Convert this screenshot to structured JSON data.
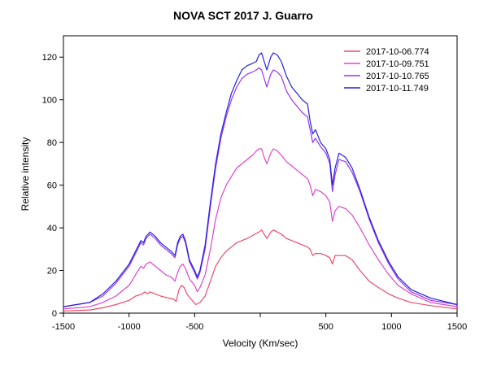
{
  "chart_data": {
    "type": "line",
    "title": "NOVA SCT 2017   J. Guarro",
    "xlabel": "Velocity (Km/sec)",
    "ylabel": "Relative intensity",
    "xlim": [
      -1500,
      1500
    ],
    "ylim": [
      0,
      130
    ],
    "xticks": [
      -1500,
      -1000,
      -500,
      0,
      500,
      1000,
      1500
    ],
    "xtick_labels": [
      "-1500",
      "-1000",
      "-500",
      "",
      "500",
      "1000",
      "1500"
    ],
    "yticks": [
      0,
      20,
      40,
      60,
      80,
      100,
      120
    ],
    "legend_position": "top-right",
    "grid": false,
    "series": [
      {
        "name": "2017-10-06.774",
        "color": "#ee4a6c",
        "points": [
          [
            -1500,
            1
          ],
          [
            -1300,
            1.5
          ],
          [
            -1200,
            2.5
          ],
          [
            -1100,
            4
          ],
          [
            -1000,
            6
          ],
          [
            -950,
            8
          ],
          [
            -900,
            9
          ],
          [
            -880,
            10
          ],
          [
            -860,
            9
          ],
          [
            -840,
            10
          ],
          [
            -800,
            9
          ],
          [
            -760,
            8
          ],
          [
            -700,
            7
          ],
          [
            -660,
            6.5
          ],
          [
            -640,
            5.5
          ],
          [
            -620,
            11
          ],
          [
            -600,
            13
          ],
          [
            -580,
            12
          ],
          [
            -560,
            9
          ],
          [
            -520,
            6
          ],
          [
            -490,
            4
          ],
          [
            -460,
            5
          ],
          [
            -420,
            8
          ],
          [
            -380,
            15
          ],
          [
            -340,
            22
          ],
          [
            -300,
            26
          ],
          [
            -260,
            29
          ],
          [
            -220,
            31
          ],
          [
            -180,
            33
          ],
          [
            -140,
            34
          ],
          [
            -100,
            35
          ],
          [
            -70,
            36
          ],
          [
            -40,
            37
          ],
          [
            -10,
            38
          ],
          [
            10,
            39
          ],
          [
            30,
            37
          ],
          [
            50,
            35
          ],
          [
            80,
            38
          ],
          [
            100,
            39
          ],
          [
            130,
            38
          ],
          [
            160,
            37
          ],
          [
            200,
            35
          ],
          [
            240,
            34
          ],
          [
            280,
            33
          ],
          [
            320,
            32
          ],
          [
            360,
            31
          ],
          [
            380,
            30
          ],
          [
            400,
            27
          ],
          [
            420,
            28
          ],
          [
            460,
            28
          ],
          [
            500,
            27
          ],
          [
            530,
            26
          ],
          [
            550,
            23
          ],
          [
            570,
            27
          ],
          [
            600,
            27
          ],
          [
            650,
            27
          ],
          [
            700,
            25
          ],
          [
            760,
            20
          ],
          [
            830,
            15
          ],
          [
            900,
            12
          ],
          [
            980,
            9
          ],
          [
            1050,
            7
          ],
          [
            1150,
            5
          ],
          [
            1300,
            3.5
          ],
          [
            1500,
            2
          ]
        ]
      },
      {
        "name": "2017-10-09.751",
        "color": "#dd44cc",
        "points": [
          [
            -1500,
            2
          ],
          [
            -1300,
            3
          ],
          [
            -1200,
            5
          ],
          [
            -1100,
            8
          ],
          [
            -1000,
            13
          ],
          [
            -950,
            18
          ],
          [
            -910,
            22
          ],
          [
            -890,
            21
          ],
          [
            -870,
            23
          ],
          [
            -840,
            24
          ],
          [
            -800,
            22
          ],
          [
            -760,
            20
          ],
          [
            -720,
            18
          ],
          [
            -680,
            17
          ],
          [
            -650,
            15
          ],
          [
            -630,
            19
          ],
          [
            -610,
            22
          ],
          [
            -590,
            23
          ],
          [
            -570,
            21
          ],
          [
            -540,
            16
          ],
          [
            -500,
            13
          ],
          [
            -480,
            10
          ],
          [
            -460,
            12
          ],
          [
            -420,
            18
          ],
          [
            -380,
            30
          ],
          [
            -340,
            44
          ],
          [
            -300,
            54
          ],
          [
            -260,
            60
          ],
          [
            -220,
            64
          ],
          [
            -180,
            68
          ],
          [
            -140,
            70
          ],
          [
            -100,
            72
          ],
          [
            -60,
            74
          ],
          [
            -30,
            76
          ],
          [
            -10,
            77
          ],
          [
            10,
            77
          ],
          [
            30,
            73
          ],
          [
            50,
            70
          ],
          [
            80,
            75
          ],
          [
            100,
            77
          ],
          [
            130,
            76
          ],
          [
            160,
            74
          ],
          [
            200,
            71
          ],
          [
            240,
            69
          ],
          [
            280,
            67
          ],
          [
            320,
            65
          ],
          [
            360,
            63
          ],
          [
            380,
            60
          ],
          [
            400,
            55
          ],
          [
            420,
            58
          ],
          [
            460,
            57
          ],
          [
            500,
            55
          ],
          [
            530,
            52
          ],
          [
            550,
            43
          ],
          [
            570,
            48
          ],
          [
            600,
            50
          ],
          [
            650,
            49
          ],
          [
            700,
            46
          ],
          [
            760,
            40
          ],
          [
            830,
            32
          ],
          [
            900,
            25
          ],
          [
            980,
            18
          ],
          [
            1050,
            13
          ],
          [
            1150,
            9
          ],
          [
            1300,
            5
          ],
          [
            1500,
            3
          ]
        ]
      },
      {
        "name": "2017-10-10.765",
        "color": "#9933ee",
        "points": [
          [
            -1500,
            3
          ],
          [
            -1300,
            5
          ],
          [
            -1200,
            8
          ],
          [
            -1100,
            14
          ],
          [
            -1000,
            22
          ],
          [
            -950,
            28
          ],
          [
            -910,
            33
          ],
          [
            -890,
            32
          ],
          [
            -870,
            35
          ],
          [
            -840,
            37
          ],
          [
            -800,
            35
          ],
          [
            -760,
            32
          ],
          [
            -720,
            30
          ],
          [
            -680,
            28
          ],
          [
            -650,
            26
          ],
          [
            -630,
            32
          ],
          [
            -610,
            35
          ],
          [
            -590,
            36
          ],
          [
            -570,
            33
          ],
          [
            -540,
            24
          ],
          [
            -500,
            19
          ],
          [
            -480,
            16
          ],
          [
            -460,
            19
          ],
          [
            -420,
            30
          ],
          [
            -380,
            50
          ],
          [
            -340,
            68
          ],
          [
            -300,
            82
          ],
          [
            -260,
            92
          ],
          [
            -220,
            100
          ],
          [
            -180,
            106
          ],
          [
            -140,
            110
          ],
          [
            -100,
            112
          ],
          [
            -60,
            113
          ],
          [
            -30,
            114
          ],
          [
            -10,
            115
          ],
          [
            10,
            114
          ],
          [
            30,
            110
          ],
          [
            50,
            106
          ],
          [
            80,
            112
          ],
          [
            100,
            114
          ],
          [
            130,
            113
          ],
          [
            160,
            111
          ],
          [
            200,
            104
          ],
          [
            240,
            100
          ],
          [
            280,
            97
          ],
          [
            320,
            94
          ],
          [
            360,
            92
          ],
          [
            380,
            86
          ],
          [
            400,
            80
          ],
          [
            420,
            82
          ],
          [
            460,
            78
          ],
          [
            500,
            75
          ],
          [
            530,
            70
          ],
          [
            550,
            57
          ],
          [
            570,
            65
          ],
          [
            600,
            72
          ],
          [
            650,
            71
          ],
          [
            700,
            66
          ],
          [
            760,
            57
          ],
          [
            830,
            44
          ],
          [
            900,
            33
          ],
          [
            980,
            23
          ],
          [
            1050,
            16
          ],
          [
            1150,
            10
          ],
          [
            1300,
            6
          ],
          [
            1500,
            4
          ]
        ]
      },
      {
        "name": "2017-10-11.749",
        "color": "#2222dd",
        "points": [
          [
            -1500,
            3
          ],
          [
            -1300,
            5
          ],
          [
            -1200,
            9
          ],
          [
            -1100,
            15
          ],
          [
            -1000,
            23
          ],
          [
            -950,
            29
          ],
          [
            -910,
            34
          ],
          [
            -890,
            33
          ],
          [
            -870,
            36
          ],
          [
            -840,
            38
          ],
          [
            -800,
            36
          ],
          [
            -760,
            33
          ],
          [
            -720,
            31
          ],
          [
            -680,
            29
          ],
          [
            -650,
            27
          ],
          [
            -630,
            33
          ],
          [
            -610,
            36
          ],
          [
            -590,
            37
          ],
          [
            -570,
            34
          ],
          [
            -540,
            25
          ],
          [
            -500,
            20
          ],
          [
            -480,
            17
          ],
          [
            -460,
            20
          ],
          [
            -420,
            32
          ],
          [
            -380,
            52
          ],
          [
            -340,
            70
          ],
          [
            -300,
            84
          ],
          [
            -260,
            94
          ],
          [
            -220,
            103
          ],
          [
            -180,
            109
          ],
          [
            -140,
            114
          ],
          [
            -100,
            116
          ],
          [
            -60,
            117
          ],
          [
            -30,
            118
          ],
          [
            -10,
            121
          ],
          [
            10,
            122
          ],
          [
            30,
            118
          ],
          [
            50,
            114
          ],
          [
            80,
            120
          ],
          [
            100,
            122
          ],
          [
            130,
            121
          ],
          [
            160,
            118
          ],
          [
            200,
            111
          ],
          [
            240,
            106
          ],
          [
            280,
            103
          ],
          [
            320,
            100
          ],
          [
            360,
            98
          ],
          [
            380,
            90
          ],
          [
            400,
            84
          ],
          [
            420,
            86
          ],
          [
            460,
            80
          ],
          [
            500,
            77
          ],
          [
            530,
            72
          ],
          [
            550,
            60
          ],
          [
            570,
            68
          ],
          [
            600,
            75
          ],
          [
            650,
            73
          ],
          [
            700,
            68
          ],
          [
            760,
            58
          ],
          [
            830,
            45
          ],
          [
            900,
            34
          ],
          [
            980,
            24
          ],
          [
            1050,
            17
          ],
          [
            1150,
            11
          ],
          [
            1300,
            7
          ],
          [
            1500,
            4
          ]
        ]
      }
    ]
  }
}
